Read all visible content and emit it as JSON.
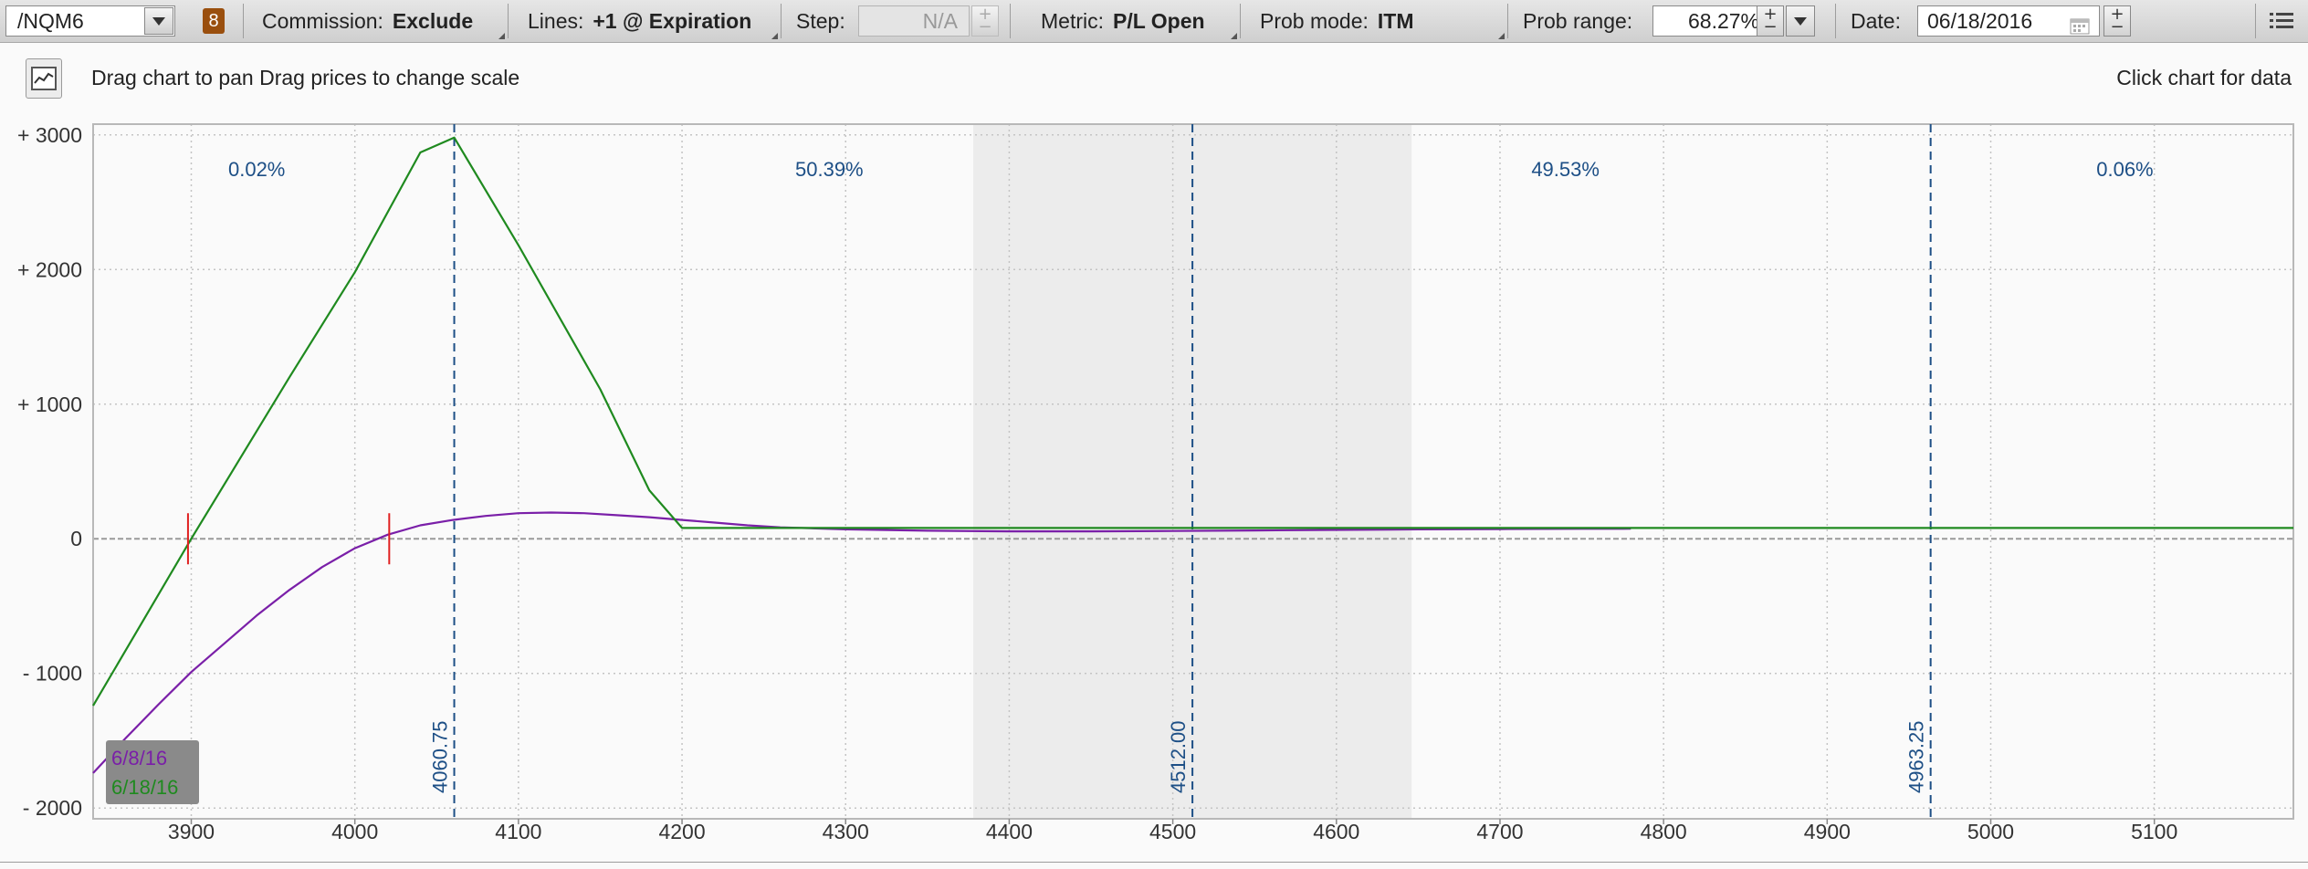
{
  "toolbar": {
    "symbol": "/NQM6",
    "badge": "8",
    "commission_label": "Commission:",
    "commission_value": "Exclude",
    "lines_label": "Lines:",
    "lines_value": "+1 @ Expiration",
    "step_label": "Step:",
    "step_value": "N/A",
    "metric_label": "Metric:",
    "metric_value": "P/L Open",
    "prob_mode_label": "Prob mode:",
    "prob_mode_value": "ITM",
    "prob_range_label": "Prob range:",
    "prob_range_value": "68.27%",
    "date_label": "Date:",
    "date_value": "06/18/2016"
  },
  "hint": {
    "drag_text": "Drag chart to pan Drag prices to change scale",
    "click_text": "Click chart for data"
  },
  "icons": {
    "dropdown": "chevron-down-icon",
    "stepper": "plus-minus-stepper-icon",
    "calendar": "calendar-icon",
    "menu": "menu-icon",
    "chart_type": "line-chart-icon"
  },
  "colors": {
    "series_6_8_16": "#7a1fa8",
    "series_6_18_16": "#1f8a1f",
    "price_marker": "#1d4f86",
    "breakeven": "#e02020",
    "shaded_range": "#ececec",
    "badge": "#9a4f0e"
  },
  "chart_data": {
    "type": "line",
    "title": "",
    "xlabel": "",
    "ylabel": "",
    "xlim": [
      3840,
      5185
    ],
    "ylim": [
      -2080,
      3080
    ],
    "x_ticks": [
      3900,
      4000,
      4100,
      4200,
      4300,
      4400,
      4500,
      4600,
      4700,
      4800,
      4900,
      5000,
      5100
    ],
    "y_ticks": [
      -2000,
      -1000,
      0,
      1000,
      2000,
      3000
    ],
    "y_tick_labels": [
      "- 2000",
      "- 1000",
      "0",
      "+ 1000",
      "+ 2000",
      "+ 3000"
    ],
    "grid": true,
    "legend": "bottom-left",
    "series": [
      {
        "name": "6/8/16",
        "color": "#7a1fa8",
        "x": [
          3840,
          3860,
          3880,
          3900,
          3920,
          3940,
          3960,
          3980,
          4000,
          4020,
          4040,
          4060,
          4080,
          4100,
          4120,
          4140,
          4160,
          4180,
          4200,
          4220,
          4240,
          4260,
          4300,
          4350,
          4400,
          4450,
          4500,
          4550,
          4600,
          4650,
          4700,
          4750,
          4780
        ],
        "y": [
          -1740,
          -1480,
          -1230,
          -990,
          -780,
          -570,
          -380,
          -210,
          -70,
          30,
          100,
          140,
          170,
          190,
          195,
          190,
          175,
          160,
          140,
          120,
          100,
          85,
          70,
          60,
          55,
          55,
          58,
          62,
          66,
          70,
          72,
          74,
          75
        ]
      },
      {
        "name": "6/18/16",
        "color": "#1f8a1f",
        "x": [
          3840,
          3900,
          3960,
          4000,
          4040,
          4060.75,
          4100,
          4150,
          4180,
          4200,
          4250,
          4300,
          4500,
          4800,
          5000,
          5185
        ],
        "y": [
          -1240,
          0,
          1200,
          1980,
          2870,
          2980,
          2180,
          1110,
          360,
          80,
          80,
          80,
          80,
          80,
          80,
          80
        ]
      }
    ],
    "price_markers": [
      {
        "label": "4060.75",
        "x": 4060.75
      },
      {
        "label": "4512.00",
        "x": 4512.0
      },
      {
        "label": "4963.25",
        "x": 4963.25
      }
    ],
    "shaded_region": [
      4378,
      4646
    ],
    "breakeven_markers": [
      3898,
      4021
    ],
    "probability_labels": [
      {
        "label": "0.02%",
        "x": 3940
      },
      {
        "label": "50.39%",
        "x": 4290
      },
      {
        "label": "49.53%",
        "x": 4740
      },
      {
        "label": "0.06%",
        "x": 5082
      }
    ]
  }
}
